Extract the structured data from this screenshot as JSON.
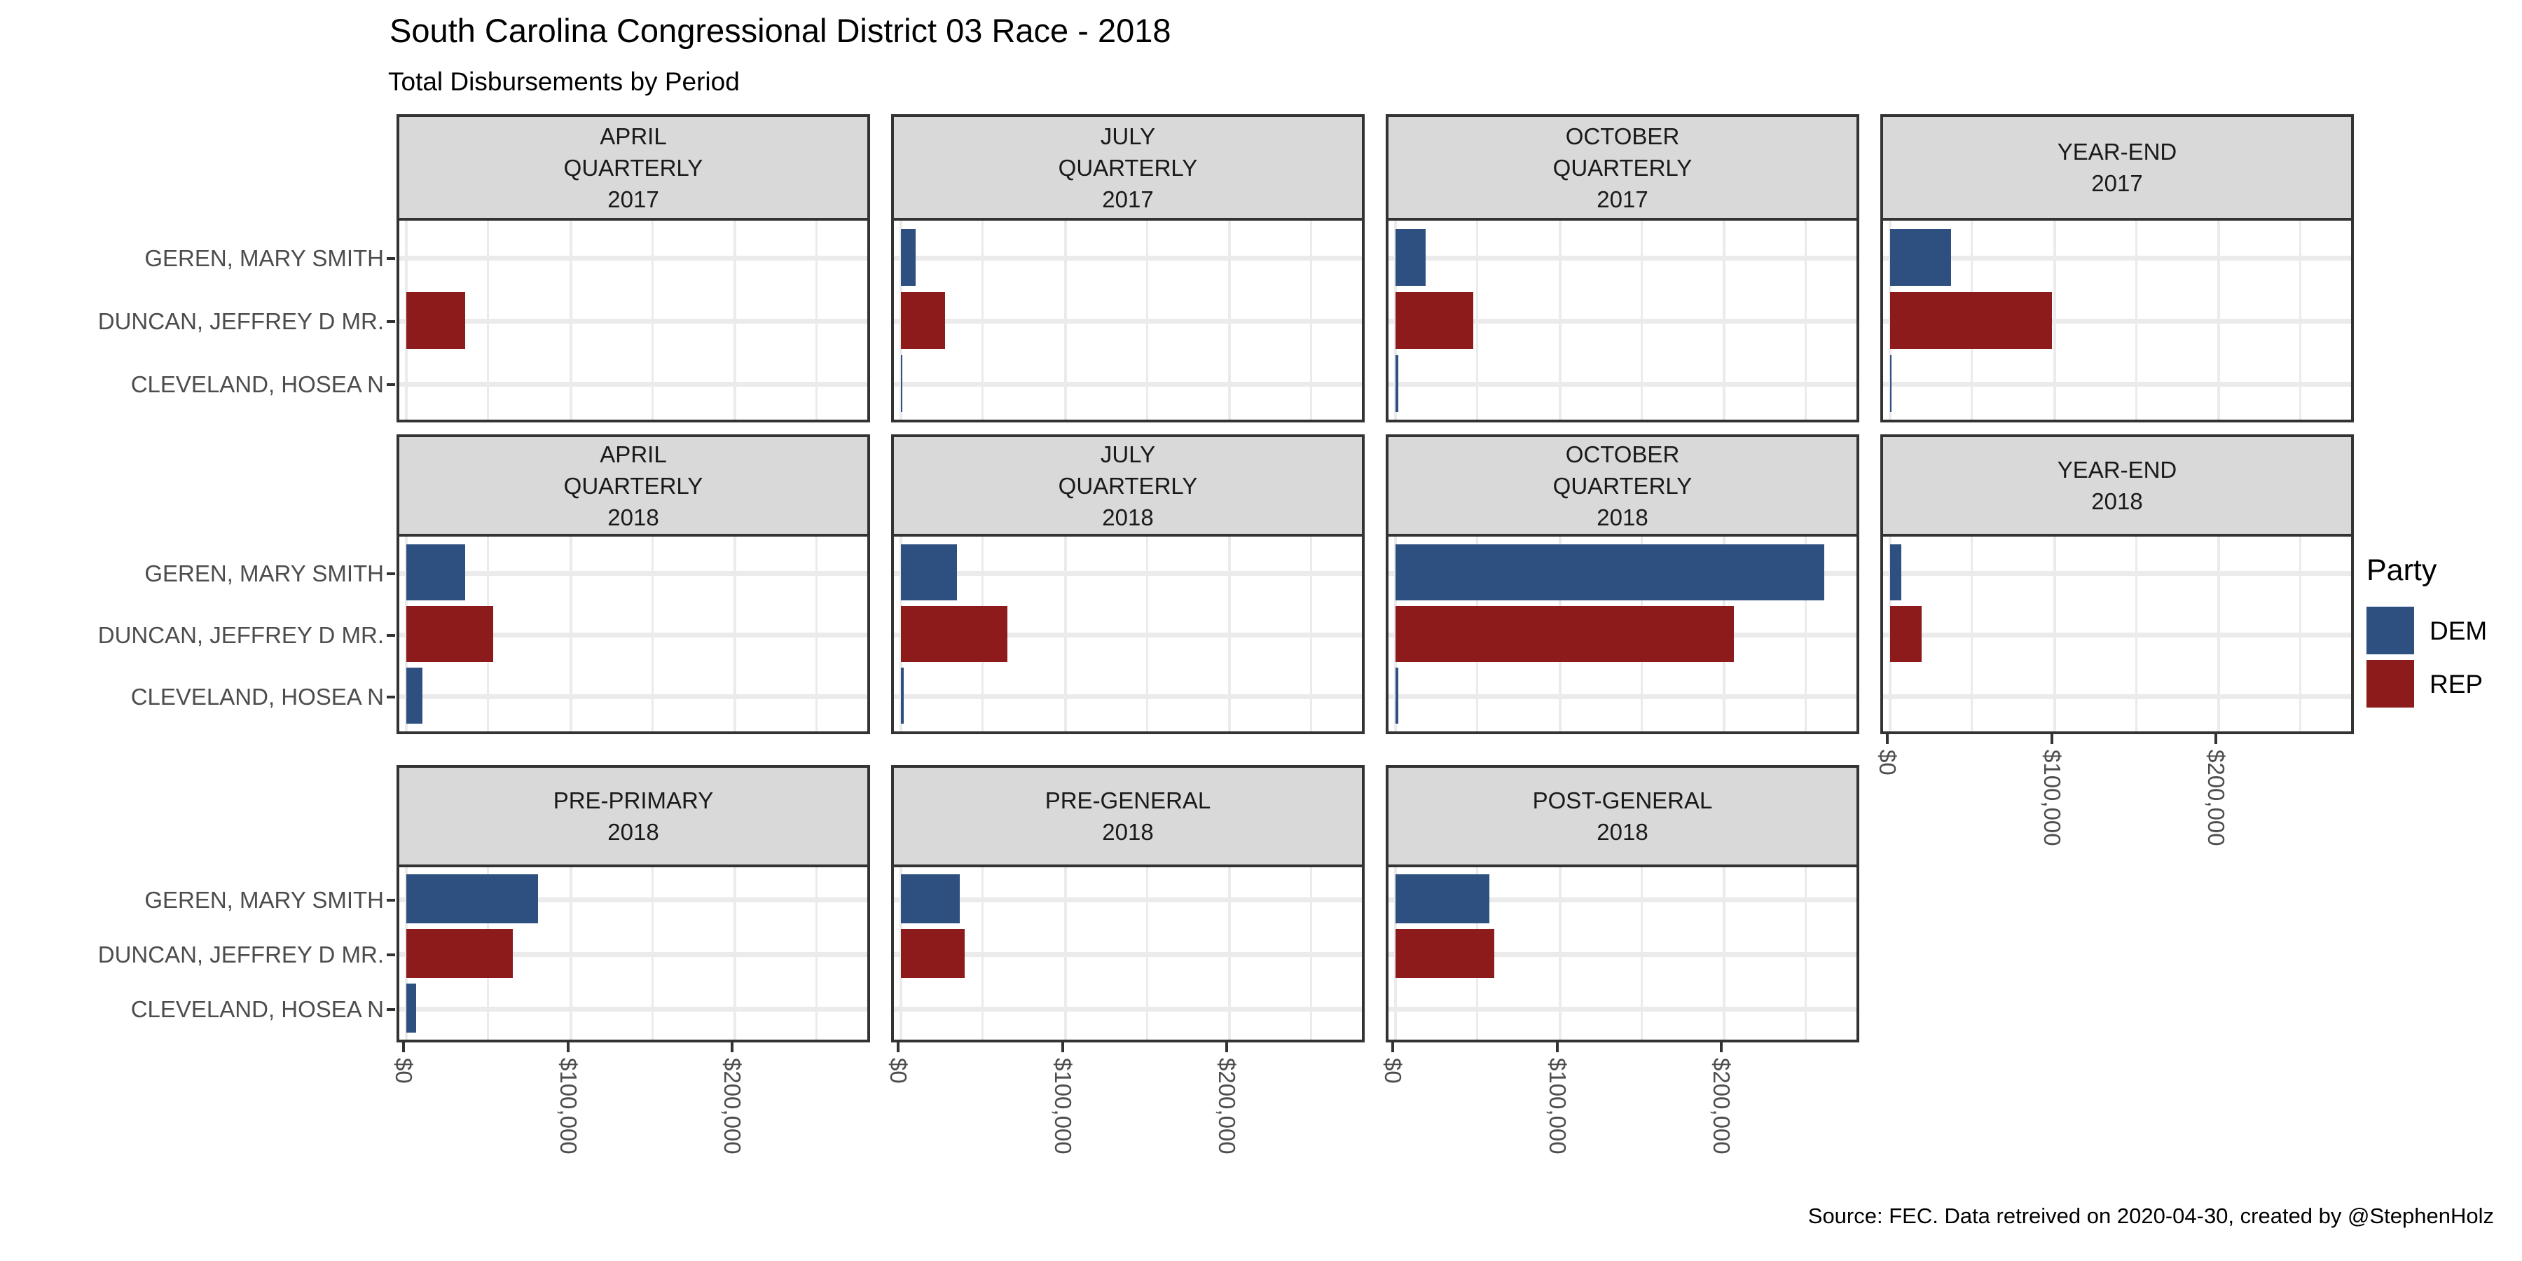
{
  "title": "South Carolina Congressional District 03 Race - 2018",
  "subtitle": "Total Disbursements by Period",
  "caption": "Source: FEC. Data retreived on 2020-04-30, created by @StephenHolz",
  "legend": {
    "title": "Party",
    "items": [
      {
        "label": "DEM",
        "color": "#2E5080"
      },
      {
        "label": "REP",
        "color": "#8E1B1B"
      }
    ]
  },
  "colors": {
    "strip_fill": "#D9D9D9",
    "panel_border": "#333333",
    "gridline": "#EBEBEB",
    "axis_text": "#4D4D4D"
  },
  "chart_data": {
    "type": "bar",
    "orientation": "horizontal",
    "title": "South Carolina Congressional District 03 Race - 2018",
    "subtitle": "Total Disbursements by Period",
    "categories": [
      "GEREN, MARY SMITH",
      "DUNCAN, JEFFREY D MR.",
      "CLEVELAND, HOSEA N"
    ],
    "category_parties": [
      "DEM",
      "REP",
      "DEM"
    ],
    "x_tick_labels": [
      "$0",
      "$100,000",
      "$200,000"
    ],
    "x_tick_values": [
      0,
      100000,
      200000
    ],
    "xlim": [
      0,
      285000
    ],
    "grid_minor_step": 50000,
    "legend_position": "right",
    "facets": [
      {
        "row": 0,
        "col": 0,
        "label_lines": [
          "APRIL",
          "QUARTERLY",
          "2017"
        ],
        "values": [
          null,
          36000,
          null
        ]
      },
      {
        "row": 0,
        "col": 1,
        "label_lines": [
          "JULY",
          "QUARTERLY",
          "2017"
        ],
        "values": [
          9000,
          27000,
          700
        ]
      },
      {
        "row": 0,
        "col": 2,
        "label_lines": [
          "OCTOBER",
          "QUARTERLY",
          "2017"
        ],
        "values": [
          18500,
          47500,
          1700
        ]
      },
      {
        "row": 0,
        "col": 3,
        "label_lines": [
          "YEAR-END",
          "2017"
        ],
        "values": [
          37000,
          98500,
          600
        ]
      },
      {
        "row": 1,
        "col": 0,
        "label_lines": [
          "APRIL",
          "QUARTERLY",
          "2018"
        ],
        "values": [
          36000,
          53000,
          10000
        ]
      },
      {
        "row": 1,
        "col": 1,
        "label_lines": [
          "JULY",
          "QUARTERLY",
          "2018"
        ],
        "values": [
          34000,
          65000,
          1500
        ]
      },
      {
        "row": 1,
        "col": 2,
        "label_lines": [
          "OCTOBER",
          "QUARTERLY",
          "2018"
        ],
        "values": [
          261000,
          206000,
          1500
        ]
      },
      {
        "row": 1,
        "col": 3,
        "label_lines": [
          "YEAR-END",
          "2018"
        ],
        "values": [
          7000,
          19000,
          null
        ]
      },
      {
        "row": 2,
        "col": 0,
        "label_lines": [
          "PRE-PRIMARY",
          "2018"
        ],
        "values": [
          80000,
          65000,
          6000
        ]
      },
      {
        "row": 2,
        "col": 1,
        "label_lines": [
          "PRE-GENERAL",
          "2018"
        ],
        "values": [
          36000,
          39000,
          null
        ]
      },
      {
        "row": 2,
        "col": 2,
        "label_lines": [
          "POST-GENERAL",
          "2018"
        ],
        "values": [
          57000,
          60000,
          null
        ]
      }
    ]
  }
}
